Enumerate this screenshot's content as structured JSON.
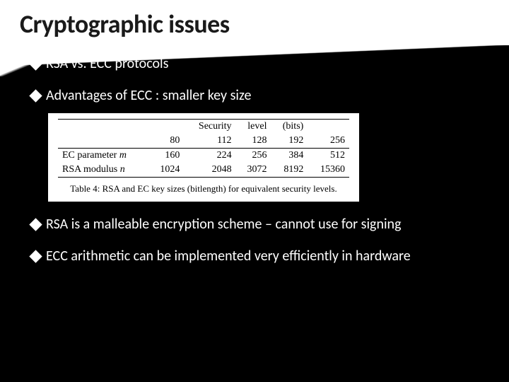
{
  "slide": {
    "title": "Cryptographic issues",
    "background_color": "#000000",
    "titlebar_background": "#ffffff",
    "title_color": "#1a1a1a",
    "title_fontsize": 36,
    "bullet_color": "#ffffff",
    "bullet_fontsize": 20,
    "bullets": [
      {
        "text": "RSA vs. ECC protocols"
      },
      {
        "text": "Advantages of ECC : smaller key size"
      },
      {
        "text": "RSA is a malleable encryption scheme – cannot use for signing"
      },
      {
        "text": "ECC arithmetic can be implemented very efficiently in hardware"
      }
    ]
  },
  "table": {
    "type": "table",
    "background_color": "#ffffff",
    "text_color": "#000000",
    "font_family": "Times New Roman",
    "fontsize": 14,
    "border_color": "#000000",
    "header": {
      "leading_blank": "",
      "label_left": "Security",
      "label_mid": "level",
      "label_right": "(bits)"
    },
    "columns_values": [
      "80",
      "112",
      "128",
      "192",
      "256"
    ],
    "rows": [
      {
        "label_prefix": "EC parameter ",
        "label_var": "m",
        "values": [
          "160",
          "224",
          "256",
          "384",
          "512"
        ]
      },
      {
        "label_prefix": "RSA modulus ",
        "label_var": "n",
        "values": [
          "1024",
          "2048",
          "3072",
          "8192",
          "15360"
        ]
      }
    ],
    "caption": "Table 4: RSA and EC key sizes (bitlength) for equivalent security levels."
  }
}
